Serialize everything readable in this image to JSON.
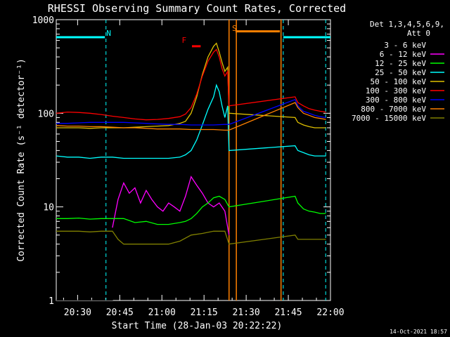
{
  "chart_data": {
    "type": "line",
    "title": "RHESSI Observing Summary Count Rates, Corrected",
    "xlabel": "Start Time (28-Jan-03 20:22:22)",
    "ylabel": "Corrected Count Rate (s⁻¹ detector⁻¹)",
    "x_unit": "minutes after 20:22:22",
    "xlim": [
      0,
      97.6
    ],
    "ylim": [
      1,
      1000
    ],
    "yscale": "log",
    "x_ticks": [
      {
        "label": "20:30",
        "x": 7.6
      },
      {
        "label": "20:45",
        "x": 22.6
      },
      {
        "label": "21:00",
        "x": 37.6
      },
      {
        "label": "21:15",
        "x": 52.6
      },
      {
        "label": "21:30",
        "x": 67.6
      },
      {
        "label": "21:45",
        "x": 82.6
      },
      {
        "label": "22:00",
        "x": 97.6
      }
    ],
    "y_ticks": [
      {
        "label": "1",
        "y": 1
      },
      {
        "label": "10",
        "y": 10
      },
      {
        "label": "100",
        "y": 100
      },
      {
        "label": "1000",
        "y": 1000
      }
    ],
    "legend": {
      "header": [
        "Det 1,3,4,5,6,9,",
        "Att 0"
      ],
      "entries": [
        {
          "label": "3 - 6 keV",
          "color": "#000000"
        },
        {
          "label": "6 - 12 keV",
          "color": "#ff00ff"
        },
        {
          "label": "12 - 25 keV",
          "color": "#00ff00"
        },
        {
          "label": "25 - 50 keV",
          "color": "#00ffff"
        },
        {
          "label": "50 - 100 keV",
          "color": "#e0c000"
        },
        {
          "label": "100 - 300 keV",
          "color": "#ff0000"
        },
        {
          "label": "300 - 800 keV",
          "color": "#0000ff"
        },
        {
          "label": "800 - 7000 keV",
          "color": "#ff8000"
        },
        {
          "label": "7000 - 15000 keV",
          "color": "#808000"
        }
      ]
    },
    "series": [
      {
        "name": "3 - 6 keV",
        "color": "#000000",
        "x": [
          0,
          20,
          22,
          24,
          26,
          28,
          30,
          32,
          34,
          36,
          38,
          40,
          42,
          44,
          46,
          48,
          50,
          52,
          54,
          56,
          58,
          60,
          61.5
        ],
        "y": [
          1,
          1,
          12,
          22,
          15,
          17,
          11,
          16,
          13,
          10,
          9,
          12,
          11,
          9,
          14,
          20,
          17,
          15,
          11,
          10,
          12,
          10,
          5
        ]
      },
      {
        "name": "6 - 12 keV",
        "color": "#ff00ff",
        "x": [
          20,
          22,
          24,
          26,
          28,
          30,
          32,
          34,
          36,
          38,
          40,
          42,
          44,
          46,
          48,
          50,
          52,
          54,
          56,
          58,
          60,
          61.5
        ],
        "y": [
          6,
          12,
          18,
          14,
          16,
          11,
          15,
          12,
          10,
          9,
          11,
          10,
          9,
          13,
          21,
          17,
          14,
          11,
          10,
          11,
          9,
          5
        ]
      },
      {
        "name": "12 - 25 keV",
        "color": "#00ff00",
        "x": [
          0,
          4,
          8,
          12,
          16,
          20,
          24,
          28,
          32,
          36,
          40,
          44,
          46,
          48,
          50,
          52,
          54,
          56,
          58,
          60,
          61.5,
          85,
          86,
          88,
          90,
          92,
          94,
          96
        ],
        "y": [
          7.5,
          7.5,
          7.6,
          7.4,
          7.5,
          7.5,
          7.5,
          6.8,
          7.0,
          6.5,
          6.5,
          6.8,
          7.0,
          7.5,
          8.5,
          10,
          11,
          12.5,
          13,
          12,
          10,
          13,
          11,
          9.5,
          9,
          8.8,
          8.5,
          8.5
        ]
      },
      {
        "name": "25 - 50 keV",
        "color": "#00ffff",
        "x": [
          0,
          4,
          8,
          12,
          16,
          20,
          24,
          28,
          32,
          36,
          40,
          44,
          46,
          48,
          50,
          52,
          54,
          56,
          57,
          58,
          59,
          60,
          61,
          61.5,
          85,
          86,
          88,
          90,
          92,
          94,
          96
        ],
        "y": [
          35,
          34,
          34,
          33,
          34,
          34,
          33,
          33,
          33,
          33,
          33,
          34,
          36,
          40,
          52,
          75,
          110,
          150,
          200,
          170,
          120,
          90,
          120,
          40,
          45,
          40,
          38,
          36,
          35,
          35,
          35
        ]
      },
      {
        "name": "50 - 100 keV",
        "color": "#e0c000",
        "x": [
          0,
          4,
          8,
          12,
          16,
          20,
          24,
          28,
          32,
          36,
          40,
          44,
          46,
          48,
          50,
          52,
          54,
          56,
          57,
          58,
          59,
          60,
          61,
          61.5,
          85,
          86,
          88,
          90,
          92,
          94,
          96
        ],
        "y": [
          70,
          70,
          70,
          69,
          70,
          70,
          70,
          71,
          72,
          73,
          74,
          78,
          82,
          100,
          150,
          260,
          400,
          520,
          560,
          450,
          350,
          280,
          310,
          100,
          90,
          80,
          75,
          72,
          70,
          70,
          70
        ]
      },
      {
        "name": "100 - 300 keV",
        "color": "#ff0000",
        "x": [
          0,
          4,
          8,
          12,
          16,
          20,
          24,
          28,
          32,
          36,
          40,
          44,
          46,
          48,
          50,
          52,
          54,
          56,
          57,
          58,
          59,
          60,
          61,
          61.5,
          85,
          86,
          88,
          90,
          92,
          94,
          96
        ],
        "y": [
          100,
          103,
          102,
          100,
          97,
          93,
          90,
          87,
          85,
          86,
          88,
          92,
          98,
          115,
          160,
          250,
          360,
          450,
          480,
          400,
          300,
          250,
          280,
          120,
          150,
          130,
          120,
          112,
          108,
          105,
          103
        ]
      },
      {
        "name": "300 - 800 keV",
        "color": "#0000ff",
        "x": [
          0,
          4,
          8,
          12,
          16,
          20,
          24,
          28,
          32,
          36,
          40,
          44,
          48,
          52,
          56,
          60,
          61.5,
          85,
          86,
          88,
          90,
          92,
          94,
          96
        ],
        "y": [
          78,
          78,
          79,
          80,
          80,
          80,
          80,
          79,
          78,
          77,
          76,
          76,
          75,
          75,
          75,
          76,
          76,
          140,
          120,
          105,
          100,
          95,
          92,
          90
        ]
      },
      {
        "name": "800 - 7000 keV",
        "color": "#ff8000",
        "x": [
          0,
          4,
          8,
          12,
          16,
          20,
          24,
          28,
          32,
          36,
          40,
          44,
          48,
          52,
          56,
          60,
          61.5,
          85,
          86,
          88,
          90,
          92,
          94,
          96
        ],
        "y": [
          74,
          73,
          73,
          72,
          72,
          71,
          70,
          70,
          69,
          68,
          68,
          68,
          67,
          67,
          67,
          66,
          66,
          130,
          115,
          100,
          95,
          90,
          88,
          86
        ]
      },
      {
        "name": "7000 - 15000 keV",
        "color": "#808000",
        "x": [
          0,
          4,
          8,
          12,
          16,
          20,
          22,
          24,
          28,
          32,
          36,
          40,
          44,
          48,
          52,
          56,
          60,
          61.5,
          85,
          86,
          88,
          90,
          92,
          94,
          96
        ],
        "y": [
          5.5,
          5.5,
          5.5,
          5.4,
          5.5,
          5.5,
          4.5,
          4.0,
          4.0,
          4.0,
          4.0,
          4.0,
          4.3,
          5.0,
          5.2,
          5.5,
          5.5,
          4,
          5,
          4.5,
          4.5,
          4.5,
          4.5,
          4.5,
          4.5
        ]
      }
    ],
    "annotations": [
      {
        "label": "N",
        "color": "#00ffff",
        "x": 18.7
      },
      {
        "label": "F",
        "color": "#ff0000",
        "x": 45.5
      },
      {
        "label": "S",
        "color": "#ff8000",
        "x": 63.4
      }
    ],
    "state_bars": [
      {
        "name": "N",
        "color": "#00ffff",
        "x_start": 0,
        "x_end": 17.3,
        "y": 650
      },
      {
        "name": "N",
        "color": "#00ffff",
        "x_start": 80.8,
        "x_end": 97.6,
        "y": 650
      },
      {
        "name": "S",
        "color": "#ff8000",
        "x_start": 63.8,
        "x_end": 79.6,
        "y": 750
      },
      {
        "name": "F",
        "color": "#ff0000",
        "x_start": 48.3,
        "x_end": 51.4,
        "y": 520
      }
    ],
    "vlines": [
      {
        "color": "#00ffff",
        "style": "dashed",
        "x": 17.7
      },
      {
        "color": "#ff8000",
        "style": "solid",
        "x": 61.5
      },
      {
        "color": "#ff8000",
        "style": "solid",
        "x": 64.1
      },
      {
        "color": "#ff8000",
        "style": "solid",
        "x": 80.0
      },
      {
        "color": "#00ffff",
        "style": "dashed",
        "x": 80.8
      },
      {
        "color": "#00ffff",
        "style": "dashed",
        "x": 95.9
      }
    ],
    "footer": "14-Oct-2021 18:57"
  }
}
